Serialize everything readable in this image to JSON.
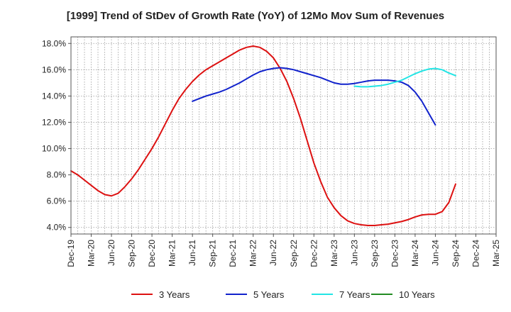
{
  "chart_data": {
    "type": "line",
    "title": "[1999]  Trend of StDev of Growth Rate (YoY) of 12Mo Mov Sum of Revenues",
    "xlabel": "",
    "ylabel": "",
    "ylim": [
      3.5,
      18.5
    ],
    "y_ticks": [
      4.0,
      6.0,
      8.0,
      10.0,
      12.0,
      14.0,
      16.0,
      18.0
    ],
    "y_tick_labels": [
      "4.0%",
      "6.0%",
      "8.0%",
      "10.0%",
      "12.0%",
      "14.0%",
      "16.0%",
      "18.0%"
    ],
    "x_tick_labels": [
      "Dec-19",
      "Mar-20",
      "Jun-20",
      "Sep-20",
      "Dec-20",
      "Mar-21",
      "Jun-21",
      "Sep-21",
      "Dec-21",
      "Mar-22",
      "Jun-22",
      "Sep-22",
      "Dec-22",
      "Mar-23",
      "Jun-23",
      "Sep-23",
      "Dec-23",
      "Mar-24",
      "Jun-24",
      "Sep-24",
      "Dec-24",
      "Mar-25"
    ],
    "grid": true,
    "legend_position": "bottom",
    "series": [
      {
        "name": "3 Years",
        "color": "#dd1111",
        "start_index": 0,
        "values": [
          8.3,
          8.0,
          7.6,
          7.2,
          6.8,
          6.5,
          6.4,
          6.6,
          7.1,
          7.7,
          8.4,
          9.2,
          10.0,
          10.9,
          11.9,
          12.9,
          13.8,
          14.5,
          15.1,
          15.6,
          16.0,
          16.3,
          16.6,
          16.9,
          17.2,
          17.5,
          17.7,
          17.8,
          17.7,
          17.4,
          16.9,
          16.1,
          15.1,
          13.8,
          12.3,
          10.6,
          8.9,
          7.5,
          6.3,
          5.5,
          4.9,
          4.5,
          4.3,
          4.2,
          4.15,
          4.15,
          4.2,
          4.25,
          4.35,
          4.45,
          4.6,
          4.8,
          4.95,
          5.0,
          5.0,
          5.2,
          5.9,
          7.3
        ]
      },
      {
        "name": "5 Years",
        "color": "#1122cc",
        "start_index": 18,
        "values": [
          13.6,
          13.8,
          14.0,
          14.15,
          14.3,
          14.5,
          14.75,
          15.0,
          15.3,
          15.6,
          15.85,
          16.0,
          16.1,
          16.15,
          16.1,
          16.0,
          15.85,
          15.7,
          15.55,
          15.4,
          15.2,
          15.0,
          14.9,
          14.9,
          14.95,
          15.05,
          15.15,
          15.2,
          15.2,
          15.2,
          15.15,
          15.05,
          14.8,
          14.3,
          13.6,
          12.7,
          11.8
        ]
      },
      {
        "name": "7 Years",
        "color": "#22e5e5",
        "start_index": 42,
        "values": [
          14.75,
          14.7,
          14.7,
          14.75,
          14.8,
          14.9,
          15.05,
          15.2,
          15.45,
          15.7,
          15.9,
          16.05,
          16.1,
          16.0,
          15.75,
          15.55
        ]
      },
      {
        "name": "10 Years",
        "color": "#228b22",
        "start_index": 0,
        "values": []
      }
    ]
  }
}
